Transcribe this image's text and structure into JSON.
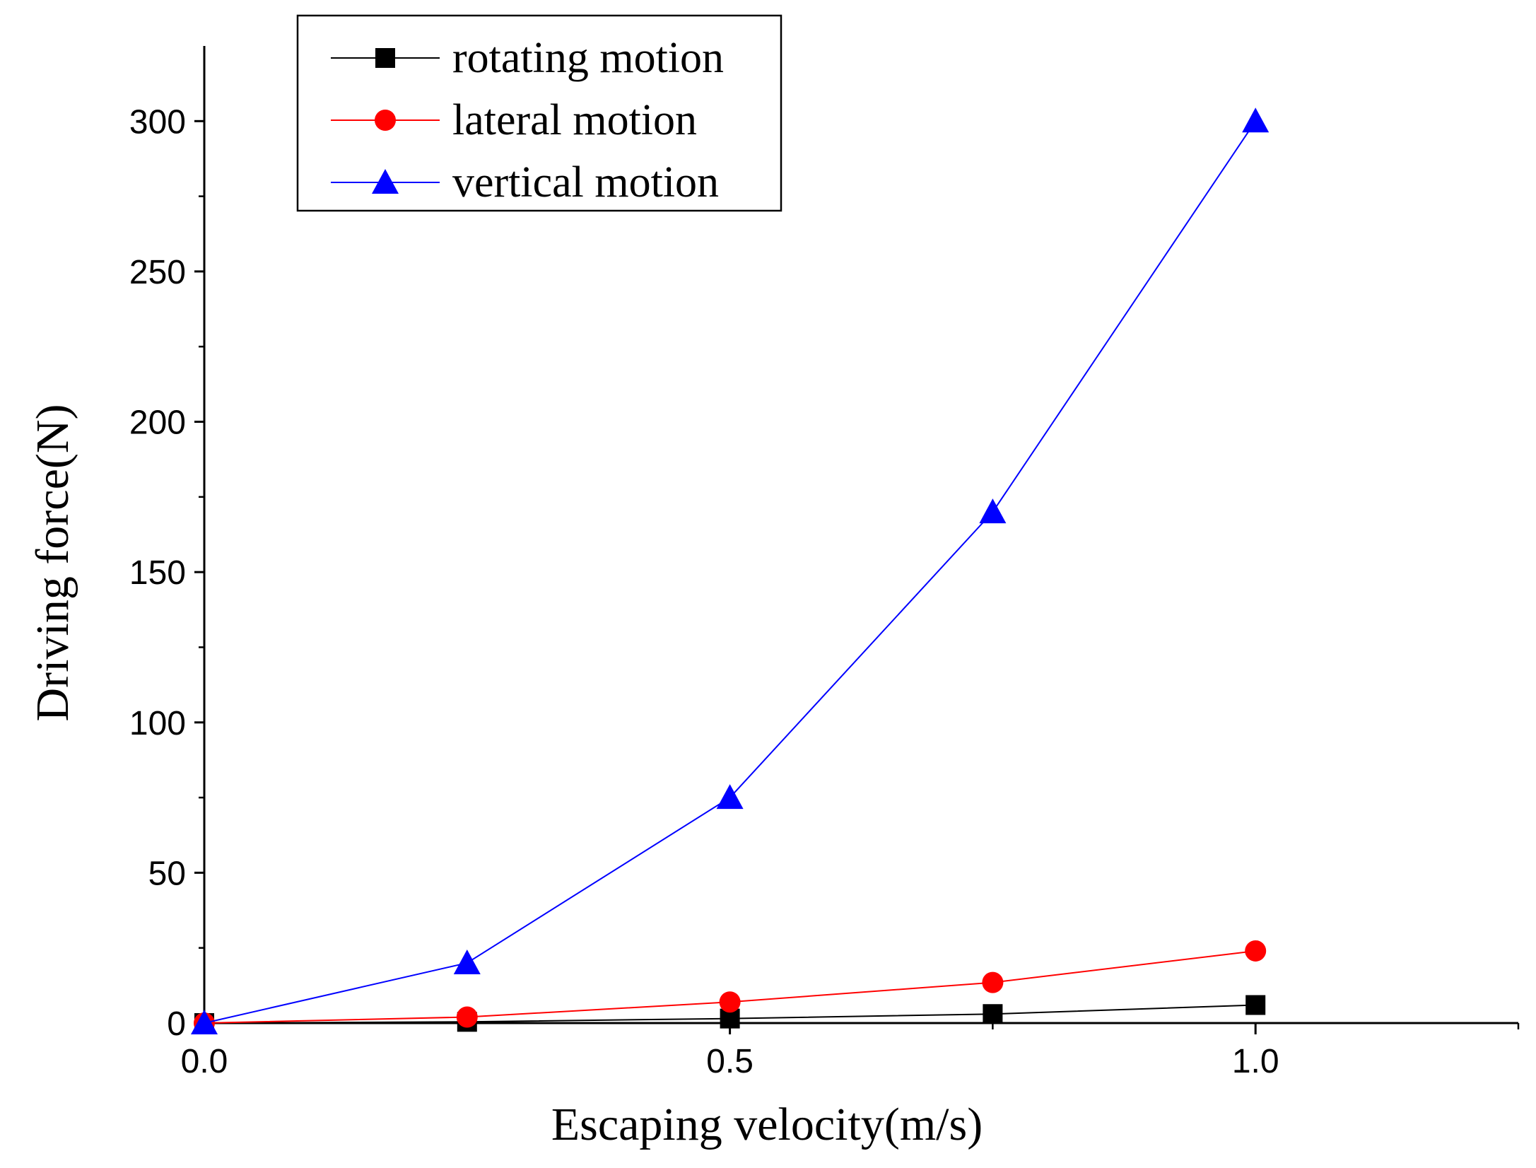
{
  "chart_data": {
    "type": "line",
    "xlabel": "Escaping velocity(m/s)",
    "ylabel": "Driving force(N)",
    "xlim": [
      0,
      1.25
    ],
    "ylim": [
      0,
      325
    ],
    "x_ticks": [
      0.0,
      0.5,
      1.0
    ],
    "x_tick_labels": [
      "0.0",
      "0.5",
      "1.0"
    ],
    "y_ticks": [
      0,
      50,
      100,
      150,
      200,
      250,
      300
    ],
    "y_tick_labels": [
      "0",
      "50",
      "100",
      "150",
      "200",
      "250",
      "300"
    ],
    "x": [
      0,
      0.25,
      0.5,
      0.75,
      1.0
    ],
    "grid": false,
    "legend_position": "top-left",
    "series": [
      {
        "name": "rotating motion",
        "values": [
          0,
          0.4,
          1.5,
          3.0,
          6.0
        ],
        "color": "#000000",
        "marker": "square"
      },
      {
        "name": "lateral motion",
        "values": [
          0,
          2.0,
          7.0,
          13.5,
          24.0
        ],
        "color": "#ff0000",
        "marker": "circle"
      },
      {
        "name": "vertical motion",
        "values": [
          0,
          20.0,
          75.0,
          170.0,
          300.0
        ],
        "color": "#0000ff",
        "marker": "triangle"
      }
    ]
  }
}
